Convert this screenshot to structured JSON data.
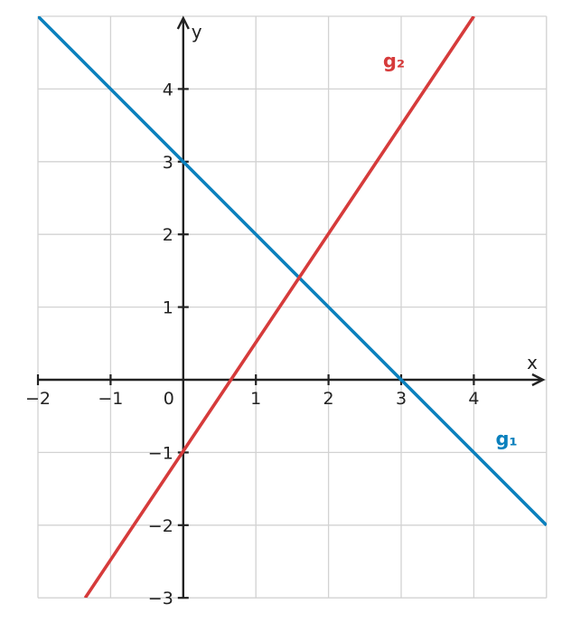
{
  "chart_data": {
    "type": "line",
    "title": "",
    "xlabel": "x",
    "ylabel": "y",
    "xlim": [
      -2,
      5
    ],
    "ylim": [
      -3,
      5
    ],
    "grid": true,
    "x_ticks": [
      -2,
      -1,
      0,
      1,
      2,
      3,
      4
    ],
    "x_tick_labels": [
      "−2",
      "−1",
      "0",
      "1",
      "2",
      "3",
      "4"
    ],
    "y_ticks": [
      -3,
      -2,
      -1,
      1,
      2,
      3,
      4
    ],
    "y_tick_labels": [
      "−3",
      "−2",
      "−1",
      "1",
      "2",
      "3",
      "4"
    ],
    "series": [
      {
        "name": "g₁",
        "color": "#0a80bd",
        "x": [
          -2,
          5
        ],
        "y": [
          5,
          -2
        ],
        "label_pos": [
          4.45,
          -0.9
        ]
      },
      {
        "name": "g₂",
        "color": "#d63b3b",
        "x": [
          -1.35,
          4
        ],
        "y": [
          -3,
          5
        ],
        "label_pos": [
          2.9,
          4.3
        ]
      }
    ]
  }
}
